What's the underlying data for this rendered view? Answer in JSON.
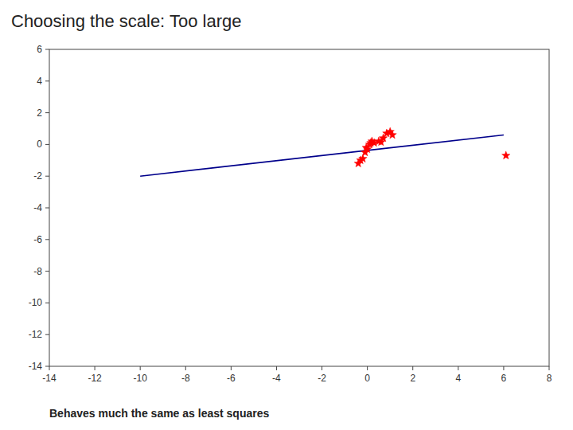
{
  "chart_data": {
    "type": "line",
    "title": "Choosing the scale: Too large",
    "subtitle": "Behaves much the same as least squares",
    "xlim": [
      -14,
      8
    ],
    "ylim": [
      -14,
      6
    ],
    "xticks": [
      -14,
      -12,
      -10,
      -8,
      -6,
      -4,
      -2,
      0,
      2,
      4,
      6,
      8
    ],
    "yticks": [
      -14,
      -12,
      -10,
      -8,
      -6,
      -4,
      -2,
      0,
      2,
      4,
      6
    ],
    "grid": false,
    "series": [
      {
        "type": "line",
        "color": "#00008B",
        "x": [
          -10,
          6
        ],
        "values": [
          -2.0,
          0.6
        ]
      },
      {
        "type": "scatter",
        "color": "#FF0000",
        "marker": "star",
        "x": [
          -0.4,
          -0.3,
          -0.2,
          -0.1,
          0.0,
          0.1,
          0.15,
          0.2,
          0.3,
          0.5,
          0.7,
          0.85,
          1.0,
          1.1,
          0.6,
          -0.05
        ],
        "values": [
          -1.2,
          -1.0,
          -0.9,
          -0.5,
          -0.3,
          0.0,
          0.1,
          0.2,
          0.1,
          0.2,
          0.4,
          0.7,
          0.8,
          0.6,
          0.15,
          -0.2
        ]
      },
      {
        "type": "scatter",
        "color": "#FF0000",
        "marker": "star",
        "x": [
          6.1
        ],
        "values": [
          -0.7
        ]
      }
    ]
  }
}
